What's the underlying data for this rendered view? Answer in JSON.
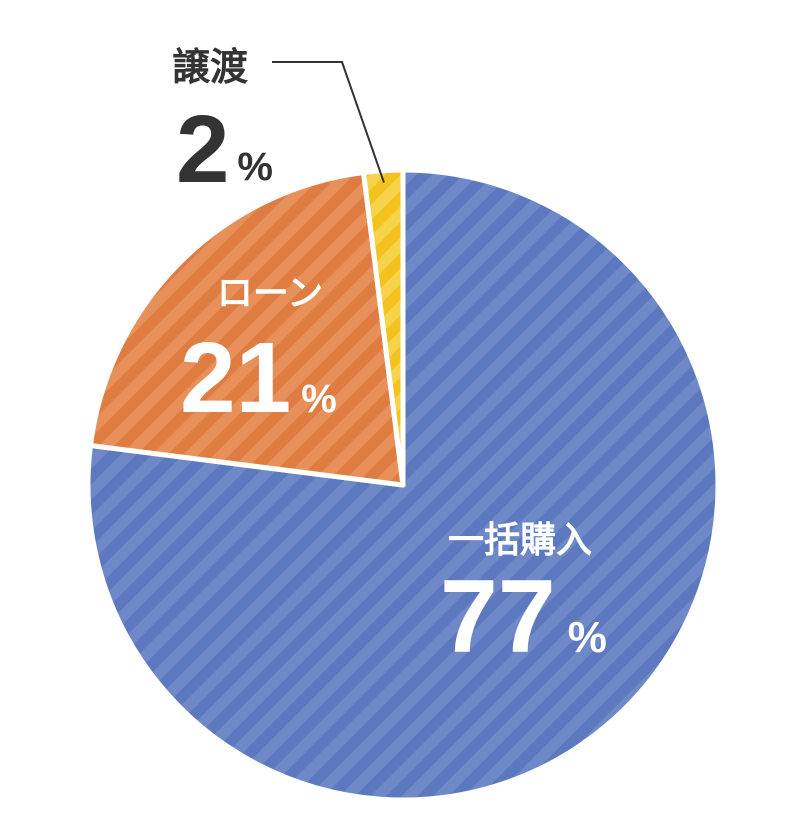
{
  "chart_data": {
    "type": "pie",
    "slices": [
      {
        "label": "一括購入",
        "value": 77,
        "display": "77",
        "unit": "%",
        "color": "#6f88c8",
        "stripe": "#5c79bf"
      },
      {
        "label": "ローン",
        "value": 21,
        "display": "21",
        "unit": "%",
        "color": "#e8905a",
        "stripe": "#de7c42"
      },
      {
        "label": "譲渡",
        "value": 2,
        "display": "2",
        "unit": "%",
        "color": "#f6d34a",
        "stripe": "#f2c31f"
      }
    ],
    "label_colors": {
      "inside": "#ffffff",
      "outside": "#333333"
    },
    "pattern": "diagonal-stripes"
  }
}
